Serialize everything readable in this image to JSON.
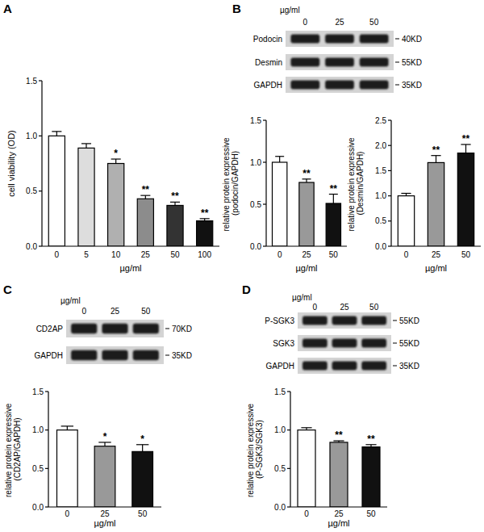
{
  "panel_labels": [
    "A",
    "B",
    "C",
    "D"
  ],
  "blots": [
    {
      "unit": "µg/ml",
      "lanes": [
        "0",
        "25",
        "50"
      ],
      "rows": [
        {
          "name": "Podocin",
          "size": "40KD"
        },
        {
          "name": "Desmin",
          "size": "55KD"
        },
        {
          "name": "GAPDH",
          "size": "35KD"
        }
      ]
    },
    {
      "unit": "µg/ml",
      "lanes": [
        "0",
        "25",
        "50"
      ],
      "rows": [
        {
          "name": "CD2AP",
          "size": "70KD"
        },
        {
          "name": "GAPDH",
          "size": "35KD"
        }
      ]
    },
    {
      "unit": "µg/ml",
      "lanes": [
        "0",
        "25",
        "50"
      ],
      "rows": [
        {
          "name": "P-SGK3",
          "size": "55KD"
        },
        {
          "name": "SGK3",
          "size": "55KD"
        },
        {
          "name": "GAPDH",
          "size": "35KD"
        }
      ]
    }
  ],
  "chart_data": [
    {
      "type": "bar",
      "categories": [
        "0",
        "5",
        "10",
        "25",
        "50",
        "100"
      ],
      "values": [
        1.0,
        0.89,
        0.75,
        0.43,
        0.37,
        0.23
      ],
      "errors": [
        0.04,
        0.04,
        0.04,
        0.03,
        0.03,
        0.02
      ],
      "colors": [
        "#ffffff",
        "#dddddd",
        "#b0b0b0",
        "#8c8c8c",
        "#333333",
        "#111111"
      ],
      "annotations": [
        null,
        null,
        "*",
        "**",
        "**",
        "**"
      ],
      "x_label": "µg/ml",
      "y_label": "cell viability (OD)",
      "ylim": [
        0,
        1.5
      ],
      "yticks": [
        {
          "value": 0,
          "label": "0.0"
        },
        0.5,
        {
          "value": 1,
          "label": "1.0"
        },
        1.5
      ]
    },
    {
      "type": "bar",
      "categories": [
        "0",
        "25",
        "50"
      ],
      "values": [
        1.0,
        0.76,
        0.51
      ],
      "errors": [
        0.07,
        0.04,
        0.11
      ],
      "colors": [
        "#ffffff",
        "#999999",
        "#111111"
      ],
      "annotations": [
        null,
        "**",
        "**"
      ],
      "x_label": "µg/ml",
      "y_label": "relative protein expressive (podocin/GAPDH)",
      "ylim": [
        0,
        1.5
      ],
      "yticks": [
        {
          "value": 0,
          "label": "0.0"
        },
        0.5,
        {
          "value": 1,
          "label": "1.0"
        },
        1.5
      ]
    },
    {
      "type": "bar",
      "categories": [
        "0",
        "25",
        "50"
      ],
      "values": [
        1.0,
        1.66,
        1.85
      ],
      "errors": [
        0.05,
        0.14,
        0.17
      ],
      "colors": [
        "#ffffff",
        "#999999",
        "#111111"
      ],
      "annotations": [
        null,
        "**",
        "**"
      ],
      "x_label": "µg/ml",
      "y_label": "relative protein expressive (Desmin/GAPDH)",
      "ylim": [
        0,
        2.5
      ],
      "yticks": [
        {
          "value": 0,
          "label": "0.0"
        },
        0.5,
        {
          "value": 1,
          "label": "1.0"
        },
        1.5,
        {
          "value": 2,
          "label": "2.0"
        },
        2.5
      ]
    },
    {
      "type": "bar",
      "categories": [
        "0",
        "25",
        "50"
      ],
      "values": [
        1.0,
        0.79,
        0.72
      ],
      "errors": [
        0.05,
        0.05,
        0.09
      ],
      "colors": [
        "#ffffff",
        "#999999",
        "#111111"
      ],
      "annotations": [
        null,
        "*",
        "*"
      ],
      "x_label": "µg/ml",
      "y_label": "relative protein expressive (CD2AP/GAPDH)",
      "ylim": [
        0,
        1.5
      ],
      "yticks": [
        {
          "value": 0,
          "label": "0.0"
        },
        0.5,
        {
          "value": 1,
          "label": "1.0"
        },
        1.5
      ]
    },
    {
      "type": "bar",
      "categories": [
        "0",
        "25",
        "50"
      ],
      "values": [
        1.0,
        0.84,
        0.78
      ],
      "errors": [
        0.03,
        0.02,
        0.03
      ],
      "colors": [
        "#ffffff",
        "#999999",
        "#111111"
      ],
      "annotations": [
        null,
        "**",
        "**"
      ],
      "x_label": "µg/ml",
      "y_label": "relative protein expressive (P-SGK3/SGK3)",
      "ylim": [
        0,
        1.5
      ],
      "yticks": [
        {
          "value": 0,
          "label": "0.0"
        },
        0.5,
        {
          "value": 1,
          "label": "1.0"
        },
        1.5
      ]
    }
  ]
}
